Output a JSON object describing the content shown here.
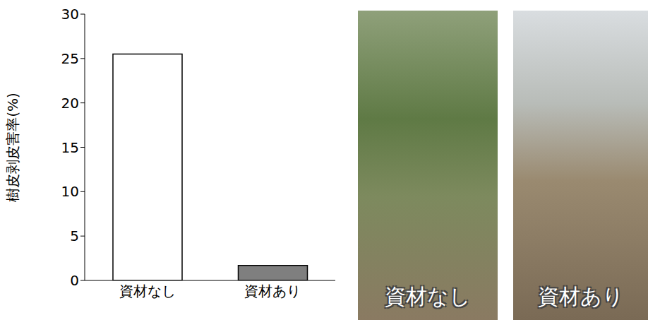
{
  "chart_data": {
    "type": "bar",
    "y_label": "樹皮剥皮害率(%)",
    "categories": [
      "資材なし",
      "資材あり"
    ],
    "values": [
      25.5,
      1.7
    ],
    "colors": [
      "#ffffff",
      "#7f7f7f"
    ],
    "ylim": [
      0,
      30
    ],
    "yticks": [
      0,
      5,
      10,
      15,
      20,
      25,
      30
    ],
    "grid": false
  },
  "photos": [
    {
      "caption": "資材なし"
    },
    {
      "caption": "資材あり"
    }
  ]
}
